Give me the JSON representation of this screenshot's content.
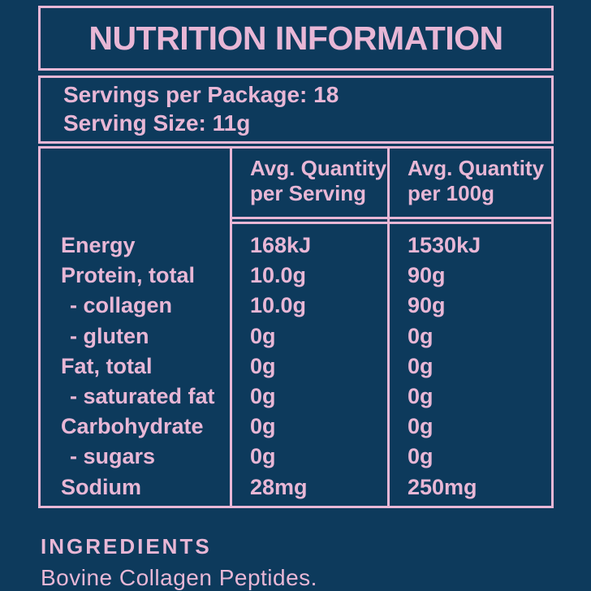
{
  "colors": {
    "background": "#0d3a5c",
    "accent_pink": "#e8b7d6"
  },
  "title": "NUTRITION INFORMATION",
  "servings": {
    "per_package": "Servings per Package: 18",
    "serving_size": "Serving Size: 11g"
  },
  "table": {
    "columns": [
      {
        "label_line1": "Avg. Quantity",
        "label_line2": "per Serving"
      },
      {
        "label_line1": "Avg. Quantity",
        "label_line2": "per 100g"
      }
    ],
    "rows": [
      {
        "name": "Energy",
        "per_serving": "168kJ",
        "per_100g": "1530kJ",
        "sub": false
      },
      {
        "name": "Protein, total",
        "per_serving": "10.0g",
        "per_100g": "90g",
        "sub": false
      },
      {
        "name": "- collagen",
        "per_serving": "10.0g",
        "per_100g": "90g",
        "sub": true
      },
      {
        "name": "- gluten",
        "per_serving": "0g",
        "per_100g": "0g",
        "sub": true
      },
      {
        "name": "Fat, total",
        "per_serving": "0g",
        "per_100g": "0g",
        "sub": false
      },
      {
        "name": "- saturated fat",
        "per_serving": "0g",
        "per_100g": "0g",
        "sub": true
      },
      {
        "name": "Carbohydrate",
        "per_serving": "0g",
        "per_100g": "0g",
        "sub": false
      },
      {
        "name": "- sugars",
        "per_serving": "0g",
        "per_100g": "0g",
        "sub": true
      },
      {
        "name": "Sodium",
        "per_serving": "28mg",
        "per_100g": "250mg",
        "sub": false
      }
    ]
  },
  "ingredients": {
    "heading": "INGREDIENTS",
    "text": "Bovine Collagen Peptides."
  }
}
